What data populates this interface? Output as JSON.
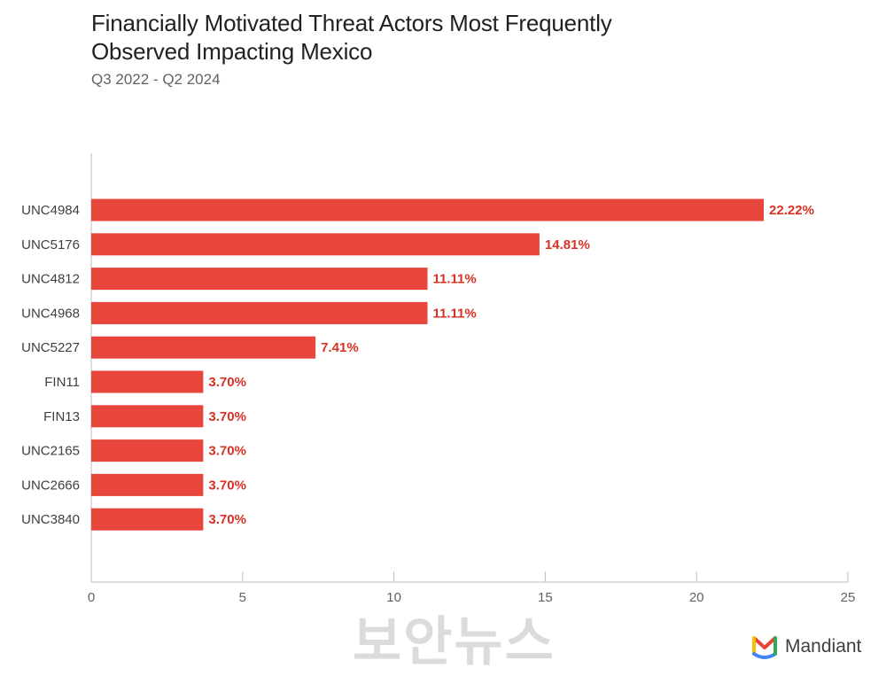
{
  "chart_data": {
    "type": "bar",
    "orientation": "horizontal",
    "title": "Financially Motivated Threat Actors Most Frequently Observed Impacting Mexico",
    "subtitle": "Q3 2022 - Q2 2024",
    "categories": [
      "UNC4984",
      "UNC5176",
      "UNC4812",
      "UNC4968",
      "UNC5227",
      "FIN11",
      "FIN13",
      "UNC2165",
      "UNC2666",
      "UNC3840"
    ],
    "values": [
      22.22,
      14.81,
      11.11,
      11.11,
      7.41,
      3.7,
      3.7,
      3.7,
      3.7,
      3.7
    ],
    "value_labels": [
      "22.22%",
      "14.81%",
      "11.11%",
      "11.11%",
      "7.41%",
      "3.70%",
      "3.70%",
      "3.70%",
      "3.70%",
      "3.70%"
    ],
    "xlim": [
      0,
      25
    ],
    "xticks": [
      "0",
      "5",
      "10",
      "15",
      "20",
      "25"
    ],
    "grid": false,
    "bar_color": "#e8453c",
    "label_color": "#d93025"
  },
  "watermark": "보안뉴스",
  "logo": {
    "icon": "mandiant-logo-icon",
    "name": "Mandiant"
  }
}
